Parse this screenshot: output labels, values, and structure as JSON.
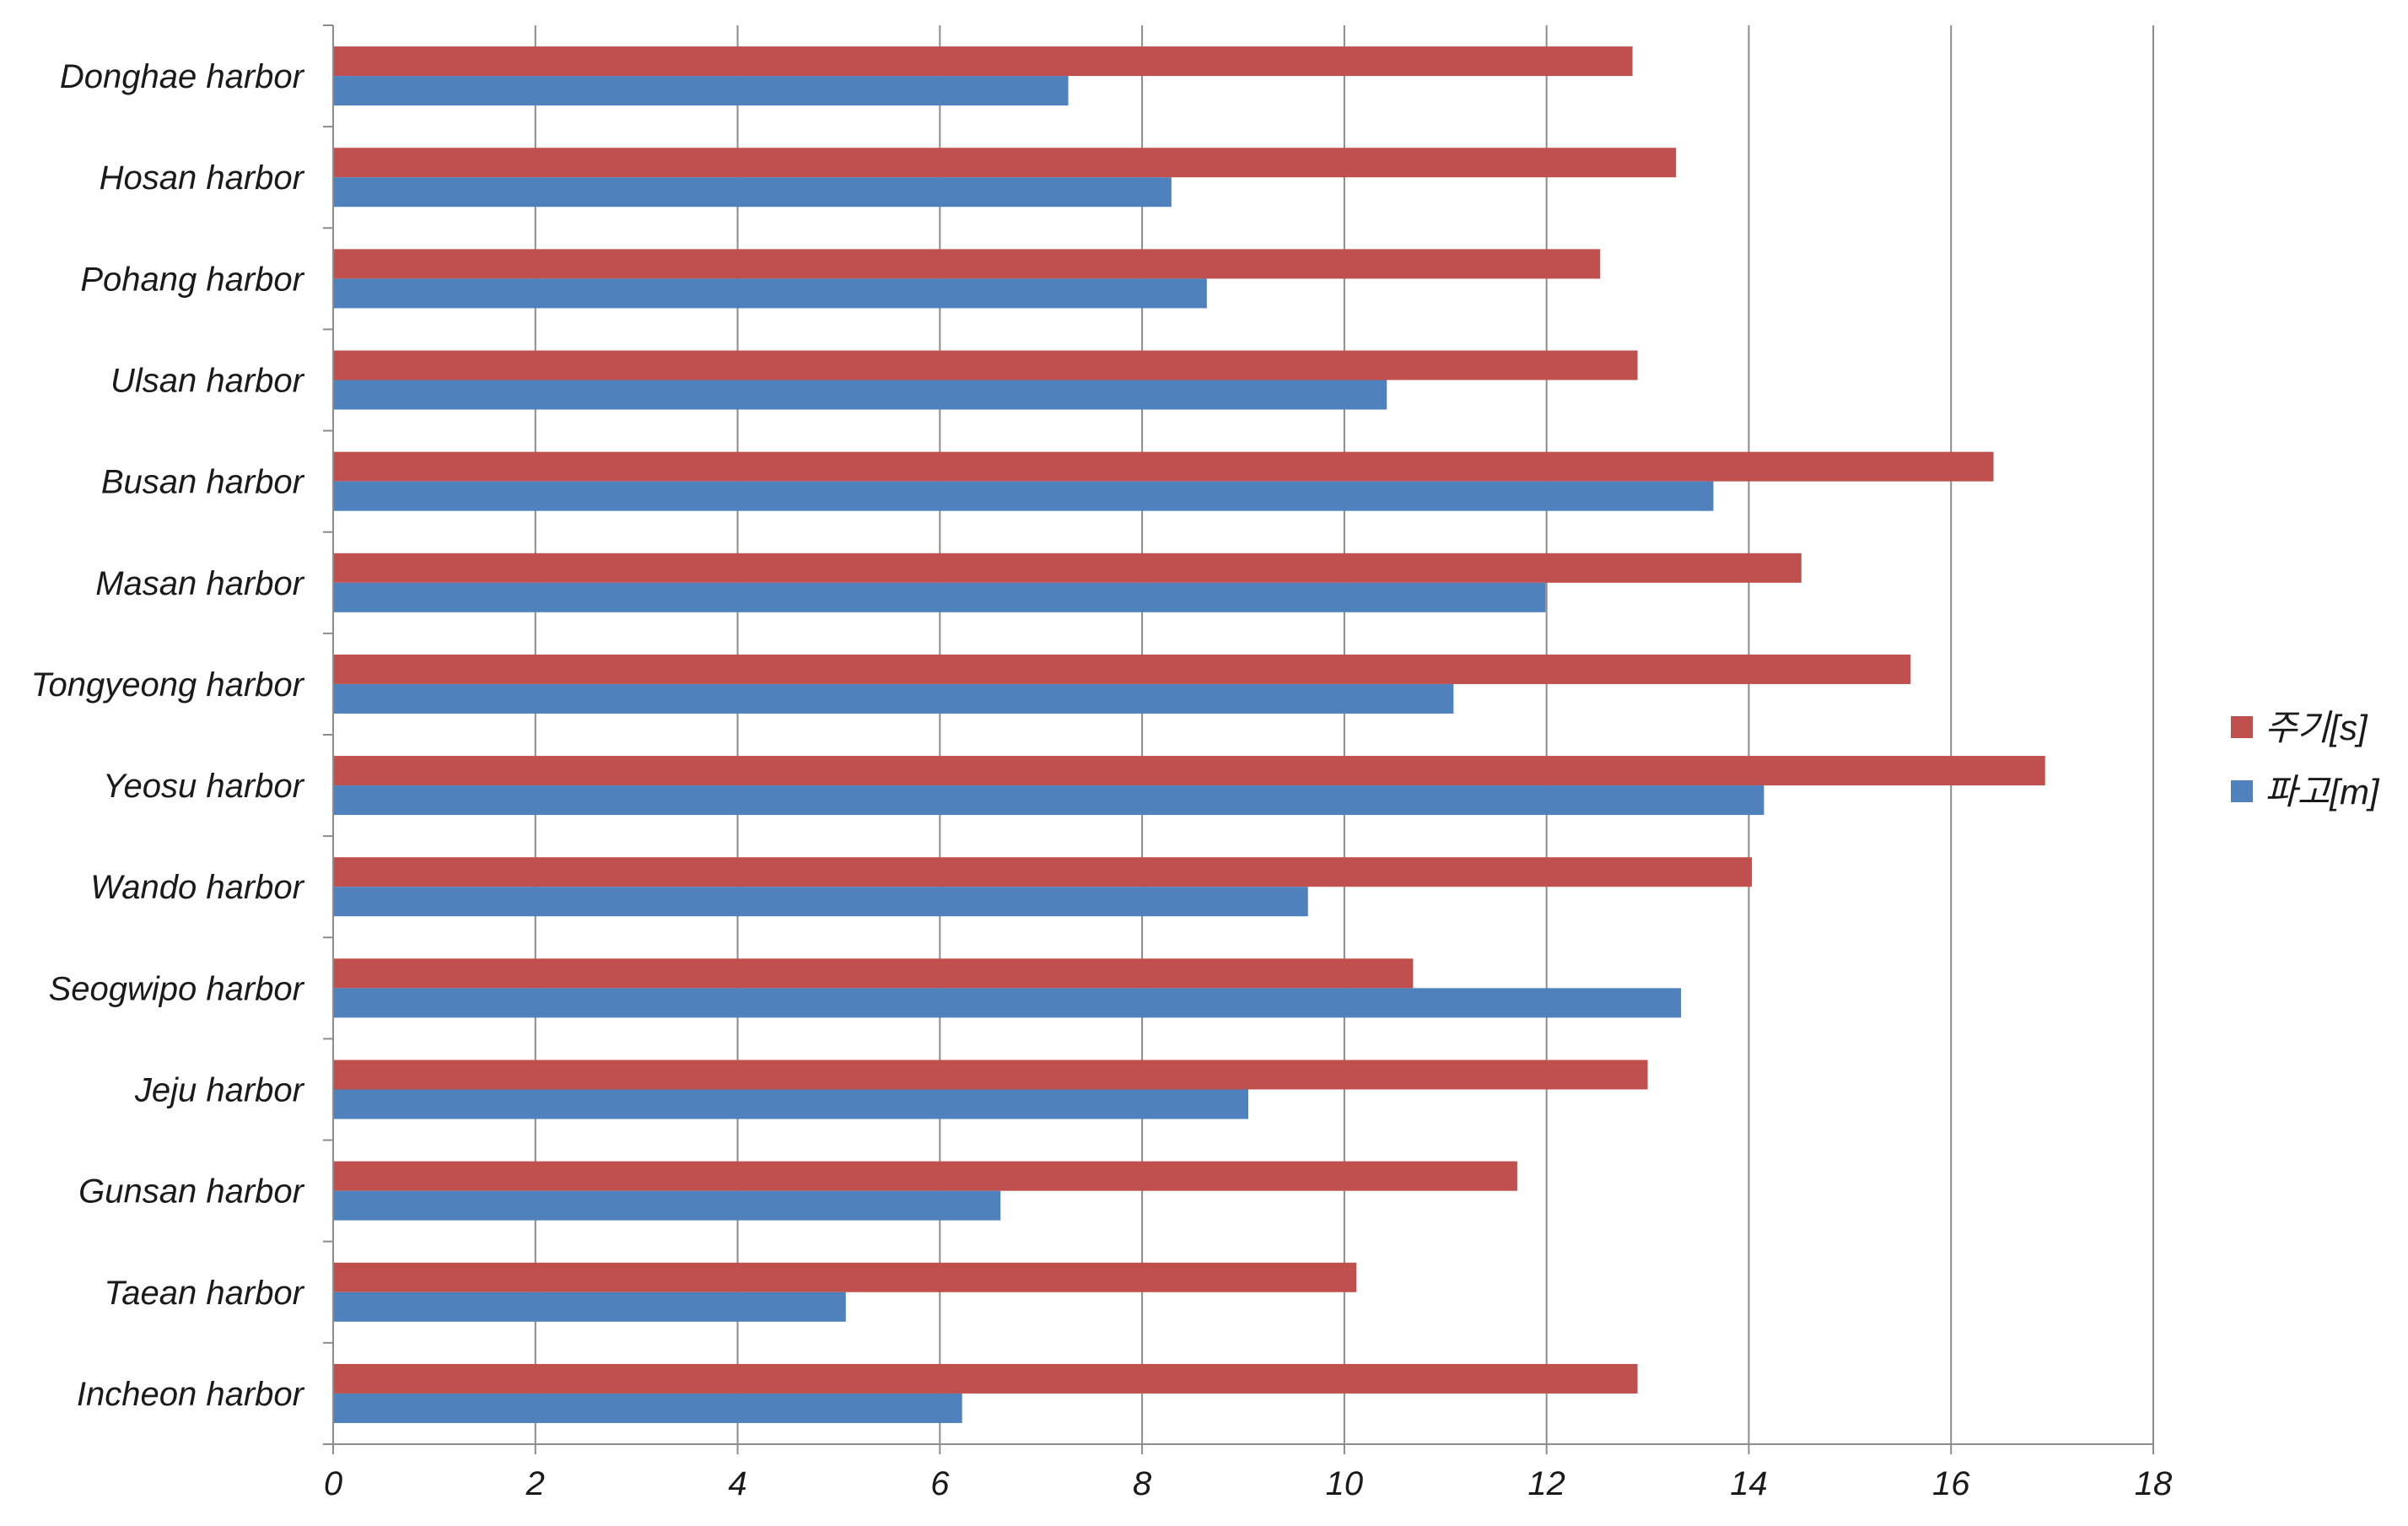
{
  "chart_data": {
    "type": "bar",
    "orientation": "horizontal",
    "categories": [
      "Donghae harbor",
      "Hosan harbor",
      "Pohang harbor",
      "Ulsan harbor",
      "Busan harbor",
      "Masan harbor",
      "Tongyeong harbor",
      "Yeosu harbor",
      "Wando harbor",
      "Seogwipo harbor",
      "Jeju harbor",
      "Gunsan harbor",
      "Taean harbor",
      "Incheon harbor"
    ],
    "series": [
      {
        "name": "주기[s]",
        "color": "#c0504d",
        "values": [
          12.85,
          13.28,
          12.53,
          12.9,
          16.42,
          14.52,
          15.6,
          16.93,
          14.03,
          10.68,
          13.0,
          11.71,
          10.12,
          12.9
        ]
      },
      {
        "name": "파고[m]",
        "color": "#4f81bd",
        "values": [
          7.27,
          8.29,
          8.64,
          10.42,
          13.65,
          11.99,
          11.08,
          14.15,
          9.64,
          13.33,
          9.05,
          6.6,
          5.07,
          6.22
        ]
      }
    ],
    "xlim": [
      0,
      18
    ],
    "xticks": [
      "0",
      "2",
      "4",
      "6",
      "8",
      "10",
      "12",
      "14",
      "16",
      "18"
    ],
    "xlabel": "",
    "ylabel": "",
    "title": "",
    "grid": true,
    "legend_position": "right"
  }
}
